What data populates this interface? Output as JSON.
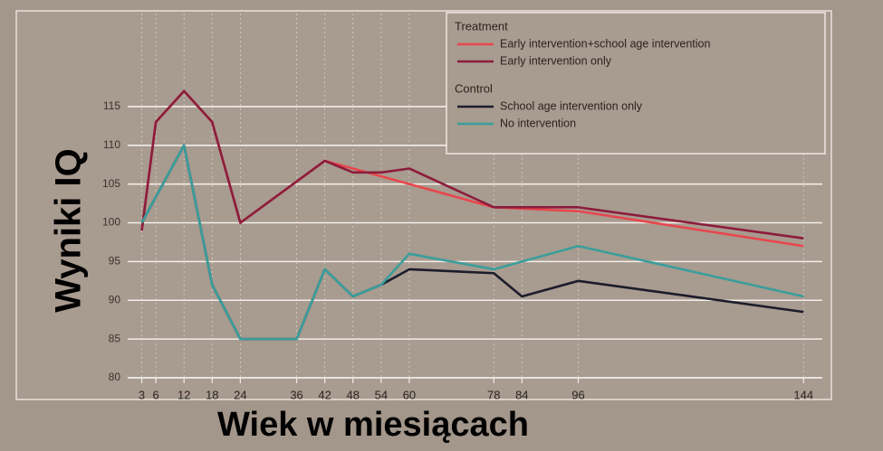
{
  "chart_data": {
    "type": "line",
    "y_label": "Wyniki IQ",
    "x_label": "Wiek w miesiącach",
    "legend_titles": [
      "Treatment",
      "Control"
    ],
    "xlim": [
      0,
      148
    ],
    "xticks": [
      3,
      6,
      12,
      18,
      24,
      36,
      42,
      48,
      54,
      60,
      78,
      84,
      96,
      144
    ],
    "ylim": [
      80,
      127
    ],
    "yticks": [
      80,
      85,
      90,
      95,
      100,
      105,
      110,
      115
    ],
    "grid": true,
    "series": [
      {
        "name": "Early intervention+school age intervention",
        "color": "#e8464e",
        "x": [
          3,
          6,
          12,
          18,
          24,
          42,
          48,
          60,
          78,
          96,
          144
        ],
        "values": [
          99,
          113,
          117,
          113,
          100,
          108,
          107,
          105,
          102,
          101.5,
          97
        ]
      },
      {
        "name": "Early intervention only",
        "color": "#8c1c3c",
        "x": [
          3,
          6,
          12,
          18,
          24,
          42,
          48,
          54,
          60,
          78,
          96,
          144
        ],
        "values": [
          99,
          113,
          117,
          113,
          100,
          108,
          106.5,
          106.5,
          107,
          102,
          102,
          98
        ]
      },
      {
        "name": "School age intervention only",
        "color": "#1c1c2c",
        "x": [
          3,
          12,
          18,
          24,
          36,
          42,
          48,
          54,
          60,
          78,
          84,
          96,
          144
        ],
        "values": [
          100,
          110,
          92,
          85,
          85,
          94,
          90.5,
          92,
          94,
          93.5,
          90.5,
          92.5,
          88.5
        ]
      },
      {
        "name": "No intervention",
        "color": "#3a9e9c",
        "x": [
          3,
          12,
          18,
          24,
          36,
          42,
          48,
          54,
          60,
          78,
          96,
          144
        ],
        "values": [
          100,
          110,
          92,
          85,
          85,
          94,
          90.5,
          92,
          96,
          94,
          97,
          90.5
        ]
      }
    ]
  }
}
